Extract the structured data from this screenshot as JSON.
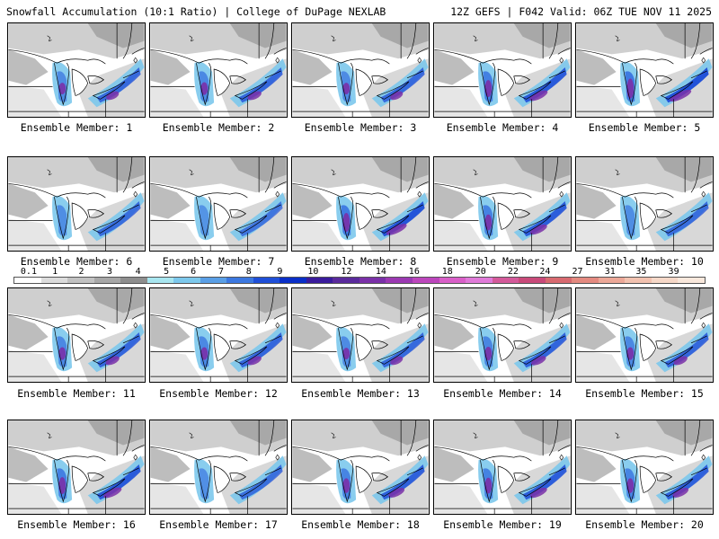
{
  "header": {
    "left": "Snowfall Accumulation (10:1 Ratio) | College of DuPage NEXLAB",
    "right": "12Z GEFS | F042 Valid: 06Z TUE NOV 11 2025"
  },
  "panels": [
    {
      "label": "Ensemble Member: 1",
      "intensity": 0.55
    },
    {
      "label": "Ensemble Member: 2",
      "intensity": 0.6
    },
    {
      "label": "Ensemble Member: 3",
      "intensity": 0.55
    },
    {
      "label": "Ensemble Member: 4",
      "intensity": 0.8
    },
    {
      "label": "Ensemble Member: 5",
      "intensity": 0.95
    },
    {
      "label": "Ensemble Member: 6",
      "intensity": 0.5
    },
    {
      "label": "Ensemble Member: 7",
      "intensity": 0.35
    },
    {
      "label": "Ensemble Member: 8",
      "intensity": 0.9
    },
    {
      "label": "Ensemble Member: 9",
      "intensity": 0.75
    },
    {
      "label": "Ensemble Member: 10",
      "intensity": 0.5
    },
    {
      "label": "Ensemble Member: 11",
      "intensity": 0.6
    },
    {
      "label": "Ensemble Member: 12",
      "intensity": 0.6
    },
    {
      "label": "Ensemble Member: 13",
      "intensity": 0.55
    },
    {
      "label": "Ensemble Member: 14",
      "intensity": 0.65
    },
    {
      "label": "Ensemble Member: 15",
      "intensity": 0.6
    },
    {
      "label": "Ensemble Member: 16",
      "intensity": 0.8
    },
    {
      "label": "Ensemble Member: 17",
      "intensity": 0.45
    },
    {
      "label": "Ensemble Member: 18",
      "intensity": 0.7
    },
    {
      "label": "Ensemble Member: 19",
      "intensity": 0.75
    },
    {
      "label": "Ensemble Member: 20",
      "intensity": 0.7
    }
  ],
  "colorbar": {
    "labels": [
      "0.1",
      "1",
      "2",
      "3",
      "4",
      "5",
      "6",
      "7",
      "8",
      "9",
      "10",
      "12",
      "14",
      "16",
      "18",
      "20",
      "22",
      "24",
      "27",
      "31",
      "35",
      "39"
    ],
    "colors": [
      "#ffffff",
      "#dcdcdc",
      "#c2c2c2",
      "#a8a8a8",
      "#8e8e8e",
      "#a8e6f0",
      "#7cc8ec",
      "#5a9fe6",
      "#3c78e0",
      "#1f4fd8",
      "#0a2fc8",
      "#3a1b9c",
      "#5a2a9c",
      "#7a30a8",
      "#9b39b2",
      "#bc46bc",
      "#d95fc8",
      "#e07ad8",
      "#d45a9a",
      "#c94a7a",
      "#d86a70",
      "#e48a80",
      "#eca898",
      "#f2c2b0",
      "#f6d8c8",
      "#f9e8dc"
    ]
  }
}
